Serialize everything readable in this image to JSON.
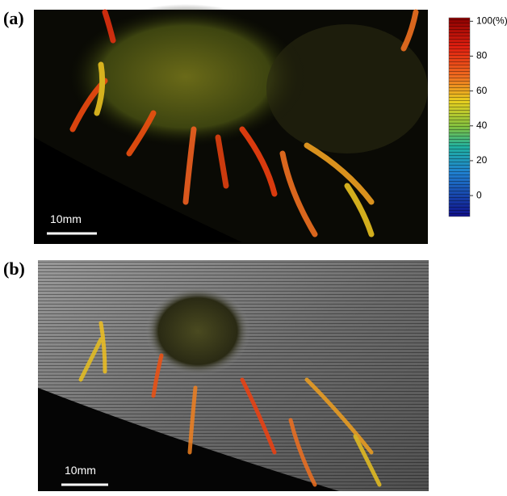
{
  "panels": [
    {
      "label": "(a)",
      "scale_bar": "10mm"
    },
    {
      "label": "(b)",
      "scale_bar": "10mm"
    }
  ],
  "colorbar": {
    "lim": [
      -12,
      102
    ],
    "ticks": [
      {
        "value": 100,
        "label": "100(%)"
      },
      80,
      60,
      40,
      20,
      0
    ]
  }
}
